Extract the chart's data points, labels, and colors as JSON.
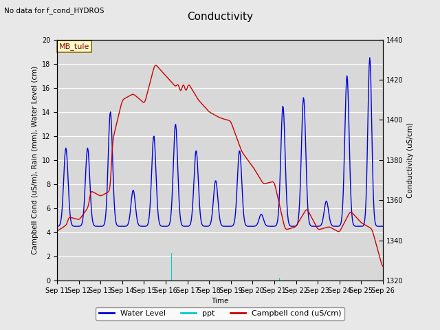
{
  "title": "Conductivity",
  "subtitle": "No data for f_cond_HYDROS",
  "xlabel": "Time",
  "ylabel_left": "Campbell Cond (uS/m), Rain (mm), Water Level (cm)",
  "ylabel_right": "Conductivity (uS/cm)",
  "annotation_box": "MB_tule",
  "ylim_left": [
    0,
    20
  ],
  "ylim_right": [
    1320,
    1440
  ],
  "fig_bg": "#e8e8e8",
  "plot_bg": "#d8d8d8",
  "grid_color": "#ffffff",
  "x_ticks": [
    "Sep 11",
    "Sep 12",
    "Sep 13",
    "Sep 14",
    "Sep 15",
    "Sep 16",
    "Sep 17",
    "Sep 18",
    "Sep 19",
    "Sep 20",
    "Sep 21",
    "Sep 22",
    "Sep 23",
    "Sep 24",
    "Sep 25",
    "Sep 26"
  ],
  "water_level_color": "#0000dd",
  "ppt_color": "#00cccc",
  "campbell_color": "#cc0000",
  "legend_items": [
    "Water Level",
    "ppt",
    "Campbell cond (uS/cm)"
  ],
  "legend_colors": [
    "#0000dd",
    "#00cccc",
    "#cc0000"
  ],
  "title_fontsize": 11,
  "axis_fontsize": 7.5,
  "tick_fontsize": 7
}
